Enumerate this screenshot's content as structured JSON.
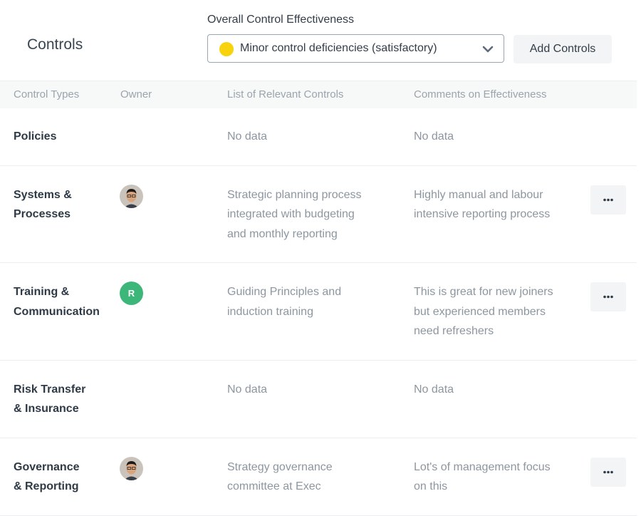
{
  "header": {
    "title": "Controls",
    "effectiveness_label": "Overall Control Effectiveness",
    "effectiveness_value": "Minor control deficiencies (satisfactory)",
    "add_button": "Add Controls"
  },
  "table": {
    "columns": [
      "Control Types",
      "Owner",
      "List of Relevant Controls",
      "Comments on Effectiveness"
    ],
    "rows": [
      {
        "type": [
          "Policies"
        ],
        "controls": [
          "No data"
        ],
        "comments": [
          "No data"
        ]
      },
      {
        "type": [
          "Systems &",
          "Processes"
        ],
        "owner_photo": true,
        "controls": [
          "Strategic planning process",
          "integrated with budgeting",
          "and monthly reporting"
        ],
        "comments": [
          "Highly manual and labour",
          "intensive reporting process"
        ],
        "menu": true
      },
      {
        "type": [
          "Training &",
          "Communication"
        ],
        "owner_initial": "R",
        "controls": [
          "Guiding Principles and",
          "induction training"
        ],
        "comments": [
          "This is great for new joiners",
          "but experienced members",
          "need refreshers"
        ],
        "menu": true
      },
      {
        "type": [
          "Risk Transfer",
          "& Insurance"
        ],
        "controls": [
          "No data"
        ],
        "comments": [
          "No data"
        ]
      },
      {
        "type": [
          "Governance",
          "& Reporting"
        ],
        "owner_photo": true,
        "controls": [
          "Strategy governance",
          "committee at Exec"
        ],
        "comments": [
          "Lot's of management focus",
          "on this"
        ],
        "menu": true
      }
    ]
  }
}
